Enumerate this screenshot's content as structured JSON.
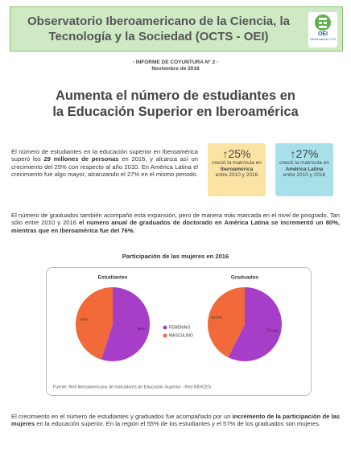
{
  "header": {
    "title": "Observatorio Iberoamericano de la Ciencia, la Tecnología y la Sociedad (OCTS - OEI)",
    "logo_name": "OEI",
    "logo_subtitle": "Observatorio CTS"
  },
  "report": {
    "series": "- INFORME DE COYUNTURA N° 2 -",
    "date": "Noviembre de 2018"
  },
  "headline": "Aumenta el número de estudiantes en la Educación Superior en Iberoamérica",
  "intro": [
    {
      "text": "El número de estudiantes en la educación superior en Iberoamérica superó los ",
      "bold": false
    },
    {
      "text": "29 millones de personas",
      "bold": true
    },
    {
      "text": " en 2016, y alcanza así un crecimiento del 25% con respecto al año 2010. En América Latina el crecimiento fue algo mayor, alcanzando el 27% en el mismo periodo.",
      "bold": false
    }
  ],
  "callouts": [
    {
      "arrow": "↑",
      "value": "25%",
      "text": "creció la matrícula en",
      "highlight": "Iberoamérica",
      "period": "entre 2010 y 2016",
      "color": "#fbe3a4"
    },
    {
      "arrow": "↑",
      "value": "27%",
      "text": "creció la matrícula en",
      "highlight": "América Latina",
      "period": "entre 2010 y 2016",
      "color": "#a8e0ea"
    }
  ],
  "graduates": [
    {
      "text": "El número de graduados también acompañó esta expansión, pero de manera más marcada en el nivel de posgrado. Tan sólo entre 2010 y 2016 ",
      "bold": false
    },
    {
      "text": "el número anual de graduados de doctorado en América Latina se incrementó un 80%, mientras que en Iberoamérica fue del 76%.",
      "bold": true
    }
  ],
  "figure": {
    "title": "Participación de las mujeres en 2016",
    "charts": [
      {
        "type": "pie",
        "title": "Estudiantes",
        "categories": [
          "FEMENINO",
          "MASCULINO"
        ],
        "values": [
          55,
          45
        ],
        "value_labels": [
          "55%",
          "45%"
        ],
        "colors": [
          "#a63ec8",
          "#f2693a"
        ]
      },
      {
        "type": "pie",
        "title": "Graduados",
        "categories": [
          "FEMENINO",
          "MASCULINO"
        ],
        "values": [
          57.4,
          42.6
        ],
        "value_labels": [
          "57,4%",
          "42,6%"
        ],
        "colors": [
          "#a63ec8",
          "#f2693a"
        ]
      }
    ],
    "source": "Fuente: Red Iberoamericana de Indicadores de Educación Superior - Red INDICES"
  },
  "closing": [
    {
      "text": "El crecimiento en el número de estudiantes y graduados fue acompañado por un ",
      "bold": false
    },
    {
      "text": "incremento de la participación de las mujeres",
      "bold": true
    },
    {
      "text": " en la educación superior. En la región el 55% de los estudiantes y el 57% de los graduados son mujeres.",
      "bold": false
    }
  ]
}
